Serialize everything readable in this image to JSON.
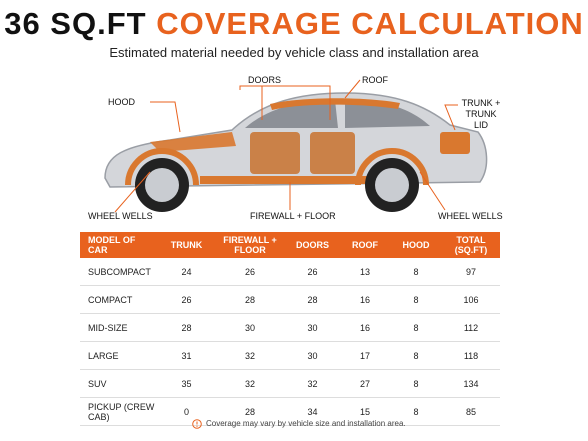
{
  "header": {
    "title_number": "36 SQ.FT",
    "title_text": "COVERAGE CALCULATION",
    "subtitle": "Estimated material needed by vehicle class and installation area"
  },
  "labels": {
    "hood": "HOOD",
    "doors": "DOORS",
    "roof": "ROOF",
    "trunk": "TRUNK + TRUNK LID",
    "wheel_wells_front": "WHEEL WELLS",
    "firewall": "FIREWALL + FLOOR",
    "wheel_wells_rear": "WHEEL WELLS"
  },
  "table": {
    "columns": [
      "MODEL OF CAR",
      "TRUNK",
      "FIREWALL + FLOOR",
      "DOORS",
      "ROOF",
      "HOOD",
      "TOTAL (SQ.FT)"
    ],
    "rows": [
      [
        "SUBCOMPACT",
        24,
        26,
        26,
        13,
        8,
        97
      ],
      [
        "COMPACT",
        26,
        28,
        28,
        16,
        8,
        106
      ],
      [
        "MID-SIZE",
        28,
        30,
        30,
        16,
        8,
        112
      ],
      [
        "LARGE",
        31,
        32,
        30,
        17,
        8,
        118
      ],
      [
        "SUV",
        35,
        32,
        32,
        27,
        8,
        134
      ],
      [
        "PICKUP (CREW CAB)",
        0,
        28,
        34,
        15,
        8,
        85
      ]
    ]
  },
  "footnote": "Coverage may vary by vehicle size and installation area."
}
